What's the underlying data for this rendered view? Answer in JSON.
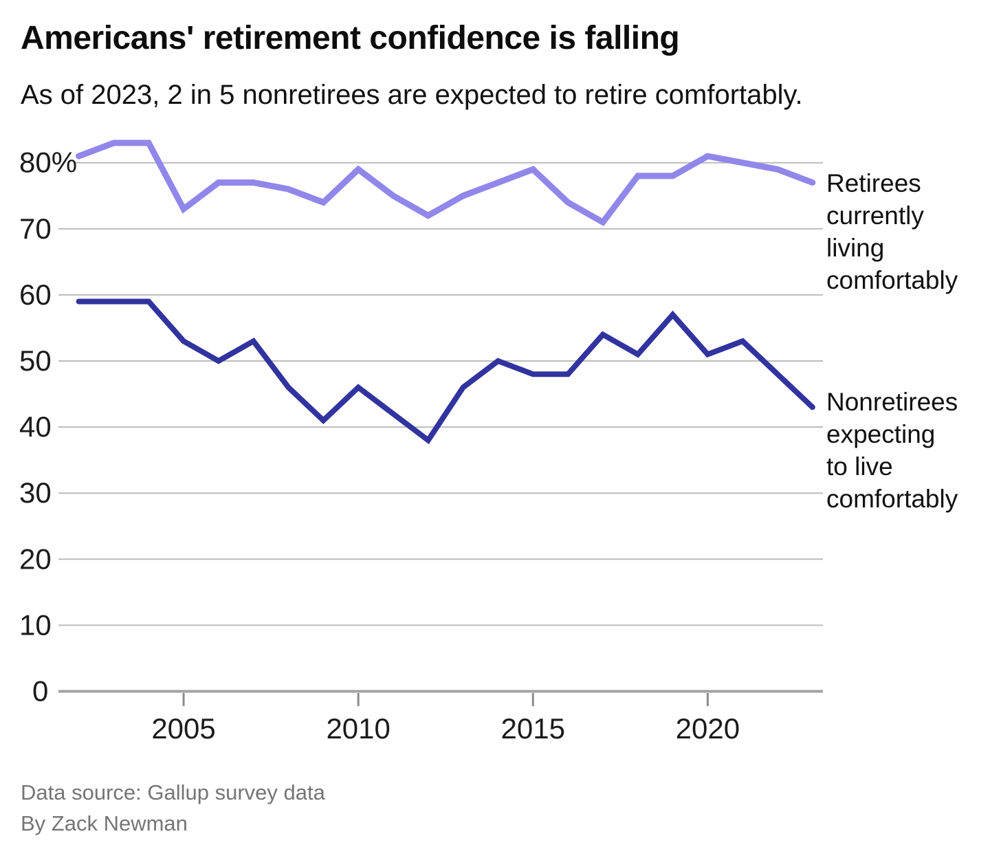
{
  "header": {
    "title": "Americans' retirement confidence is falling",
    "subtitle": "As of 2023, 2 in 5 nonretirees are expected to retire comfortably."
  },
  "footer": {
    "source": "Data source: Gallup survey data",
    "byline": "By Zack Newman"
  },
  "chart_data": {
    "type": "line",
    "title": "Americans' retirement confidence is falling",
    "x": [
      2002,
      2003,
      2004,
      2005,
      2006,
      2007,
      2008,
      2009,
      2010,
      2011,
      2012,
      2013,
      2014,
      2015,
      2016,
      2017,
      2018,
      2019,
      2020,
      2021,
      2022,
      2023
    ],
    "series": [
      {
        "name": "Retirees currently living comfortably",
        "label_lines": [
          "Retirees",
          "currently",
          "living",
          "comfortably"
        ],
        "color": "#9187ea",
        "values": [
          81,
          83,
          83,
          73,
          77,
          77,
          76,
          74,
          79,
          75,
          72,
          75,
          77,
          79,
          74,
          71,
          78,
          78,
          81,
          80,
          79,
          77
        ]
      },
      {
        "name": "Nonretirees expecting to live comfortably",
        "label_lines": [
          "Nonretirees",
          "expecting",
          "to live",
          "comfortably"
        ],
        "color": "#31339e",
        "values": [
          59,
          59,
          59,
          53,
          50,
          53,
          46,
          41,
          46,
          42,
          38,
          46,
          50,
          48,
          48,
          54,
          51,
          57,
          51,
          53,
          48,
          43
        ]
      }
    ],
    "x_ticks": [
      2005,
      2010,
      2015,
      2020
    ],
    "y_ticks": [
      {
        "value": 80,
        "label": "80%"
      },
      {
        "value": 70,
        "label": "70"
      },
      {
        "value": 60,
        "label": "60"
      },
      {
        "value": 50,
        "label": "50"
      },
      {
        "value": 40,
        "label": "40"
      },
      {
        "value": 30,
        "label": "30"
      },
      {
        "value": 20,
        "label": "20"
      },
      {
        "value": 10,
        "label": "10"
      },
      {
        "value": 0,
        "label": "0"
      }
    ],
    "ylim": [
      0,
      86
    ],
    "xlim": [
      2002,
      2023
    ],
    "grid": true,
    "legend_position": "right",
    "grid_color": "#bcbcbc",
    "axis_color": "#a3a3a3",
    "tick_color": "#8a8a8a",
    "label_color": "#1b1b1b"
  }
}
